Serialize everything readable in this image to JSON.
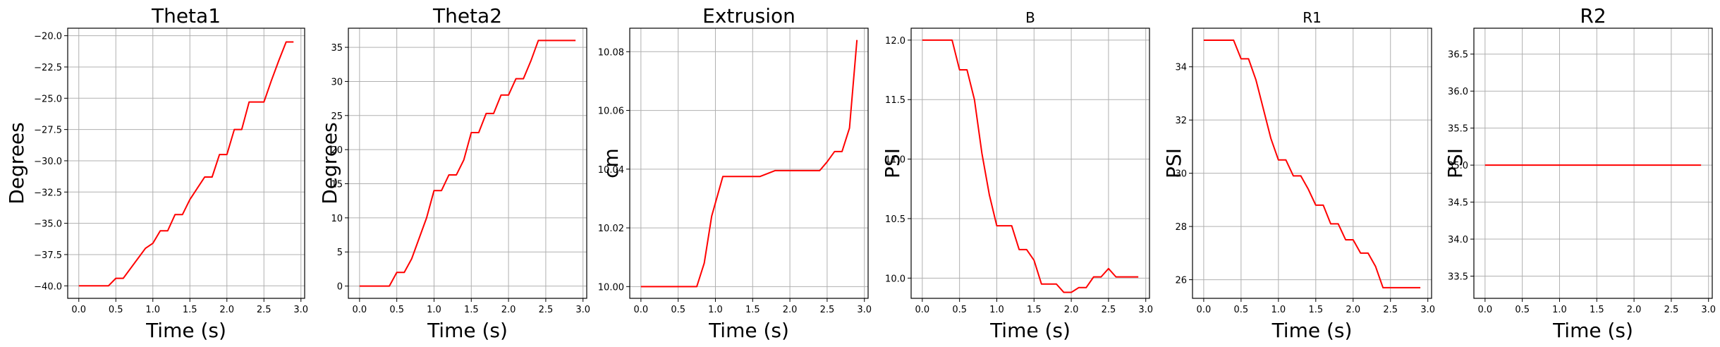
{
  "chart_data": [
    {
      "type": "line",
      "title": "Theta1",
      "xlabel": "Time (s)",
      "ylabel": "Degrees",
      "xlim": [
        -0.15,
        3.05
      ],
      "ylim": [
        -41.0,
        -19.4
      ],
      "xticks": [
        0.0,
        0.5,
        1.0,
        1.5,
        2.0,
        2.5,
        3.0
      ],
      "xtick_labels": [
        "0.0",
        "0.5",
        "1.0",
        "1.5",
        "2.0",
        "2.5",
        "3.0"
      ],
      "yticks": [
        -40.0,
        -37.5,
        -35.0,
        -32.5,
        -30.0,
        -27.5,
        -25.0,
        -22.5,
        -20.0
      ],
      "ytick_labels": [
        "−40.0",
        "−37.5",
        "−35.0",
        "−32.5",
        "−30.0",
        "−27.5",
        "−25.0",
        "−22.5",
        "−20.0"
      ],
      "grid": true,
      "color": "#ff0000",
      "series": [
        {
          "x": [
            0.0,
            0.1,
            0.2,
            0.3,
            0.4,
            0.5,
            0.6,
            0.7,
            0.8,
            0.9,
            1.0,
            1.1,
            1.2,
            1.3,
            1.4,
            1.5,
            1.6,
            1.7,
            1.8,
            1.9,
            2.0,
            2.1,
            2.2,
            2.3,
            2.4,
            2.5,
            2.6,
            2.7,
            2.8,
            2.9
          ],
          "y": [
            -40.0,
            -40.0,
            -40.0,
            -40.0,
            -40.0,
            -39.4,
            -39.4,
            -38.6,
            -37.8,
            -37.0,
            -36.6,
            -35.6,
            -35.6,
            -34.3,
            -34.3,
            -33.1,
            -32.2,
            -31.3,
            -31.3,
            -29.5,
            -29.5,
            -27.5,
            -27.5,
            -25.3,
            -25.3,
            -25.3,
            -23.6,
            -22.0,
            -20.5,
            -20.5
          ]
        }
      ]
    },
    {
      "type": "line",
      "title": "Theta2",
      "xlabel": "Time (s)",
      "ylabel": "Degrees",
      "xlim": [
        -0.15,
        3.05
      ],
      "ylim": [
        -1.8,
        37.8
      ],
      "xticks": [
        0.0,
        0.5,
        1.0,
        1.5,
        2.0,
        2.5,
        3.0
      ],
      "xtick_labels": [
        "0.0",
        "0.5",
        "1.0",
        "1.5",
        "2.0",
        "2.5",
        "3.0"
      ],
      "yticks": [
        0,
        5,
        10,
        15,
        20,
        25,
        30,
        35
      ],
      "ytick_labels": [
        "0",
        "5",
        "10",
        "15",
        "20",
        "25",
        "30",
        "35"
      ],
      "grid": true,
      "color": "#ff0000",
      "series": [
        {
          "x": [
            0.0,
            0.1,
            0.2,
            0.3,
            0.4,
            0.5,
            0.6,
            0.7,
            0.8,
            0.9,
            1.0,
            1.1,
            1.2,
            1.3,
            1.4,
            1.5,
            1.6,
            1.7,
            1.8,
            1.9,
            2.0,
            2.1,
            2.2,
            2.3,
            2.4,
            2.5,
            2.6,
            2.7,
            2.8,
            2.9
          ],
          "y": [
            0.0,
            0.0,
            0.0,
            0.0,
            0.0,
            2.0,
            2.0,
            4.0,
            7.0,
            10.0,
            14.0,
            14.0,
            16.3,
            16.3,
            18.5,
            22.5,
            22.5,
            25.3,
            25.3,
            28.0,
            28.0,
            30.4,
            30.4,
            33.0,
            36.0,
            36.0,
            36.0,
            36.0,
            36.0,
            36.0
          ]
        }
      ]
    },
    {
      "type": "line",
      "title": "Extrusion",
      "xlabel": "Time (s)",
      "ylabel": "cm",
      "xlim": [
        -0.15,
        3.05
      ],
      "ylim": [
        9.996,
        10.088
      ],
      "xticks": [
        0.0,
        0.5,
        1.0,
        1.5,
        2.0,
        2.5,
        3.0
      ],
      "xtick_labels": [
        "0.0",
        "0.5",
        "1.0",
        "1.5",
        "2.0",
        "2.5",
        "3.0"
      ],
      "yticks": [
        10.0,
        10.02,
        10.04,
        10.06,
        10.08
      ],
      "ytick_labels": [
        "10.00",
        "10.02",
        "10.04",
        "10.06",
        "10.08"
      ],
      "grid": true,
      "color": "#ff0000",
      "series": [
        {
          "x": [
            0.0,
            0.1,
            0.2,
            0.3,
            0.4,
            0.5,
            0.6,
            0.7,
            0.75,
            0.85,
            0.95,
            1.1,
            1.2,
            1.3,
            1.4,
            1.5,
            1.6,
            1.7,
            1.8,
            1.9,
            2.0,
            2.1,
            2.2,
            2.3,
            2.4,
            2.5,
            2.6,
            2.7,
            2.8,
            2.9
          ],
          "y": [
            10.0,
            10.0,
            10.0,
            10.0,
            10.0,
            10.0,
            10.0,
            10.0,
            10.0,
            10.008,
            10.024,
            10.0375,
            10.0375,
            10.0375,
            10.0375,
            10.0375,
            10.0375,
            10.0385,
            10.0395,
            10.0395,
            10.0395,
            10.0395,
            10.0395,
            10.0395,
            10.0395,
            10.0425,
            10.046,
            10.046,
            10.054,
            10.084
          ]
        }
      ]
    },
    {
      "type": "line",
      "title": "B",
      "xlabel": "Time (s)",
      "ylabel": "PSI",
      "xlim": [
        -0.15,
        3.05
      ],
      "ylim": [
        9.83,
        12.1
      ],
      "xticks": [
        0.0,
        0.5,
        1.0,
        1.5,
        2.0,
        2.5,
        3.0
      ],
      "xtick_labels": [
        "0.0",
        "0.5",
        "1.0",
        "1.5",
        "2.0",
        "2.5",
        "3.0"
      ],
      "yticks": [
        10.0,
        10.5,
        11.0,
        11.5,
        12.0
      ],
      "ytick_labels": [
        "10.0",
        "10.5",
        "11.0",
        "11.5",
        "12.0"
      ],
      "grid": true,
      "color": "#ff0000",
      "series": [
        {
          "x": [
            0.0,
            0.1,
            0.2,
            0.3,
            0.4,
            0.5,
            0.6,
            0.7,
            0.8,
            0.9,
            1.0,
            1.1,
            1.2,
            1.3,
            1.4,
            1.5,
            1.6,
            1.7,
            1.8,
            1.9,
            2.0,
            2.1,
            2.2,
            2.3,
            2.4,
            2.5,
            2.6,
            2.7,
            2.8,
            2.9
          ],
          "y": [
            12.0,
            12.0,
            12.0,
            12.0,
            12.0,
            11.75,
            11.75,
            11.5,
            11.05,
            10.7,
            10.44,
            10.44,
            10.44,
            10.24,
            10.24,
            10.15,
            9.95,
            9.95,
            9.95,
            9.88,
            9.88,
            9.92,
            9.92,
            10.01,
            10.01,
            10.08,
            10.01,
            10.01,
            10.01,
            10.01
          ]
        }
      ]
    },
    {
      "type": "line",
      "title": "R1",
      "xlabel": "Time (s)",
      "ylabel": "PSI",
      "xlim": [
        -0.15,
        3.05
      ],
      "ylim": [
        25.3,
        35.45
      ],
      "xticks": [
        0.0,
        0.5,
        1.0,
        1.5,
        2.0,
        2.5,
        3.0
      ],
      "xtick_labels": [
        "0.0",
        "0.5",
        "1.0",
        "1.5",
        "2.0",
        "2.5",
        "3.0"
      ],
      "yticks": [
        26,
        28,
        30,
        32,
        34
      ],
      "ytick_labels": [
        "26",
        "28",
        "30",
        "32",
        "34"
      ],
      "grid": true,
      "color": "#ff0000",
      "series": [
        {
          "x": [
            0.0,
            0.1,
            0.2,
            0.3,
            0.4,
            0.5,
            0.6,
            0.7,
            0.8,
            0.9,
            1.0,
            1.1,
            1.2,
            1.3,
            1.4,
            1.5,
            1.6,
            1.7,
            1.8,
            1.9,
            2.0,
            2.1,
            2.2,
            2.3,
            2.4,
            2.5,
            2.6,
            2.7,
            2.8,
            2.9
          ],
          "y": [
            35.0,
            35.0,
            35.0,
            35.0,
            35.0,
            34.3,
            34.3,
            33.5,
            32.4,
            31.3,
            30.5,
            30.5,
            29.9,
            29.9,
            29.4,
            28.8,
            28.8,
            28.1,
            28.1,
            27.5,
            27.5,
            27.0,
            27.0,
            26.5,
            25.7,
            25.7,
            25.7,
            25.7,
            25.7,
            25.7
          ]
        }
      ]
    },
    {
      "type": "line",
      "title": "R2",
      "xlabel": "Time (s)",
      "ylabel": "PSI",
      "xlim": [
        -0.15,
        3.05
      ],
      "ylim": [
        33.2,
        36.85
      ],
      "xticks": [
        0.0,
        0.5,
        1.0,
        1.5,
        2.0,
        2.5,
        3.0
      ],
      "xtick_labels": [
        "0.0",
        "0.5",
        "1.0",
        "1.5",
        "2.0",
        "2.5",
        "3.0"
      ],
      "yticks": [
        33.5,
        34.0,
        34.5,
        35.0,
        35.5,
        36.0,
        36.5
      ],
      "ytick_labels": [
        "33.5",
        "34.0",
        "34.5",
        "35.0",
        "35.5",
        "36.0",
        "36.5"
      ],
      "grid": true,
      "color": "#ff0000",
      "series": [
        {
          "x": [
            0.0,
            2.9
          ],
          "y": [
            35.0,
            35.0
          ]
        }
      ]
    }
  ]
}
